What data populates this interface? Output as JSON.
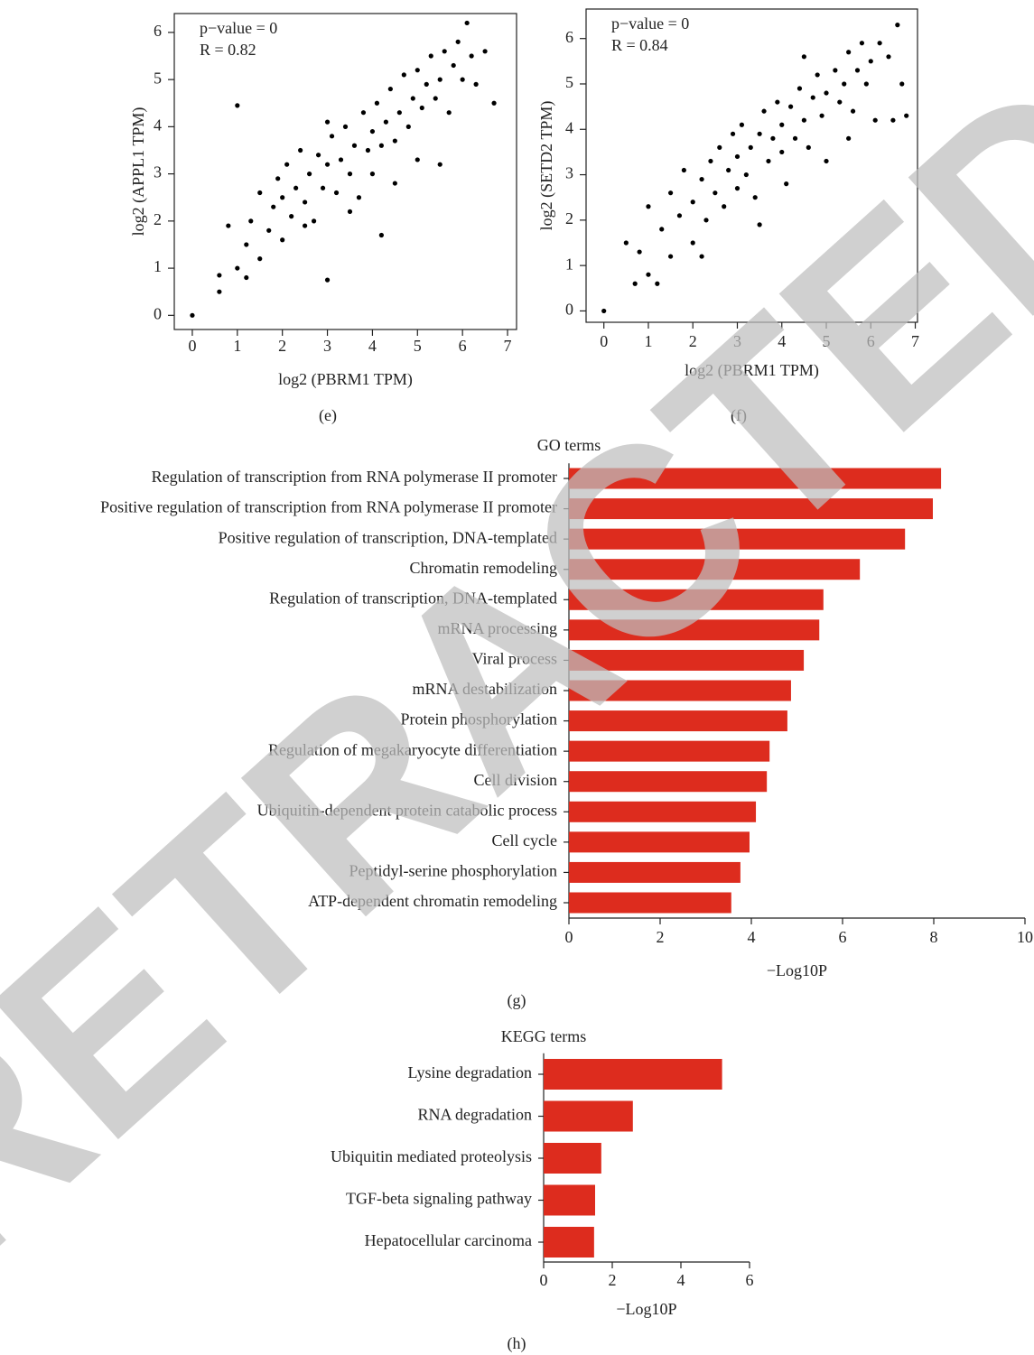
{
  "watermark": "RETRACTED",
  "chart_data": [
    {
      "type": "scatter",
      "panel": "(e)",
      "xlabel": "log2 (PBRM1 TPM)",
      "ylabel": "log2 (APPL1 TPM)",
      "annotations": [
        "p−value = 0",
        "R = 0.82"
      ],
      "color": "#000000",
      "xlim": [
        -0.4,
        7.2
      ],
      "ylim": [
        -0.3,
        6.4
      ],
      "xticks": [
        0,
        1,
        2,
        3,
        4,
        5,
        6,
        7
      ],
      "yticks": [
        0,
        1,
        2,
        3,
        4,
        5,
        6
      ],
      "x": [
        0,
        0.6,
        0.6,
        0.8,
        1,
        1,
        1.2,
        1.3,
        1.5,
        1.5,
        1.7,
        1.8,
        1.9,
        2,
        2,
        2.1,
        2.2,
        2.3,
        2.4,
        2.5,
        2.6,
        2.7,
        2.8,
        2.9,
        3,
        3,
        3.1,
        3.2,
        3.3,
        3.4,
        3.5,
        3.6,
        3.7,
        3.8,
        3.9,
        4,
        4,
        4.1,
        4.2,
        4.3,
        4.2,
        4.4,
        4.5,
        4.6,
        4.7,
        4.8,
        4.9,
        5,
        5,
        5.1,
        5.2,
        5.3,
        5.4,
        5.5,
        5.6,
        5.7,
        5.8,
        5.9,
        6,
        6.1,
        6.2,
        6.3,
        6.5,
        6.7,
        3.5,
        2.5,
        1.2,
        5.5,
        4.5,
        3.0
      ],
      "values": [
        0,
        0.5,
        0.85,
        1.9,
        1.0,
        4.45,
        1.5,
        2.0,
        1.2,
        2.6,
        1.8,
        2.3,
        2.9,
        1.6,
        2.5,
        3.2,
        2.1,
        2.7,
        3.5,
        2.4,
        3.0,
        2.0,
        3.4,
        2.7,
        3.2,
        0.75,
        3.8,
        2.6,
        3.3,
        4.0,
        3.0,
        3.6,
        2.5,
        4.3,
        3.5,
        3.9,
        3.0,
        4.5,
        3.6,
        4.1,
        1.7,
        4.8,
        3.7,
        4.3,
        5.1,
        4.0,
        4.6,
        3.3,
        5.2,
        4.4,
        4.9,
        5.5,
        4.6,
        5.0,
        5.6,
        4.3,
        5.3,
        5.8,
        5.0,
        6.2,
        5.5,
        4.9,
        5.6,
        4.5,
        2.2,
        1.9,
        0.8,
        3.2,
        2.8,
        4.1
      ]
    },
    {
      "type": "scatter",
      "panel": "(f)",
      "xlabel": "log2 (PBRM1 TPM)",
      "ylabel": "log2 (SETD2 TPM)",
      "annotations": [
        "p−value = 0",
        "R = 0.84"
      ],
      "color": "#000000",
      "xlim": [
        -0.4,
        7.05
      ],
      "ylim": [
        -0.25,
        6.65
      ],
      "xticks": [
        0,
        1,
        2,
        3,
        4,
        5,
        6,
        7
      ],
      "yticks": [
        0,
        1,
        2,
        3,
        4,
        5,
        6
      ],
      "x": [
        0,
        0.5,
        0.7,
        0.8,
        1,
        1,
        1.2,
        1.3,
        1.5,
        1.5,
        1.7,
        1.8,
        2,
        2,
        2.2,
        2.3,
        2.4,
        2.5,
        2.6,
        2.7,
        2.8,
        2.9,
        3,
        3,
        3.1,
        3.2,
        3.3,
        3.4,
        3.5,
        3.6,
        3.7,
        3.8,
        3.9,
        4,
        4,
        4.1,
        4.2,
        4.3,
        4.4,
        4.5,
        4.6,
        4.7,
        4.8,
        4.9,
        5,
        5,
        5.2,
        5.3,
        5.4,
        5.5,
        5.6,
        5.7,
        5.8,
        5.9,
        6,
        6.1,
        6.2,
        6.4,
        6.6,
        6.8,
        6.7,
        6.5,
        3.5,
        2.2,
        5.5,
        4.5
      ],
      "values": [
        0,
        1.5,
        0.6,
        1.3,
        0.8,
        2.3,
        0.6,
        1.8,
        2.6,
        1.2,
        2.1,
        3.1,
        2.4,
        1.5,
        2.9,
        2.0,
        3.3,
        2.6,
        3.6,
        2.3,
        3.1,
        3.9,
        2.7,
        3.4,
        4.1,
        3.0,
        3.6,
        2.5,
        3.9,
        4.4,
        3.3,
        3.8,
        4.6,
        3.5,
        4.1,
        2.8,
        4.5,
        3.8,
        4.9,
        4.2,
        3.6,
        4.7,
        5.2,
        4.3,
        4.8,
        3.3,
        5.3,
        4.6,
        5.0,
        5.7,
        4.4,
        5.3,
        5.9,
        5.0,
        5.5,
        4.2,
        5.9,
        5.6,
        6.3,
        4.3,
        5.0,
        4.2,
        1.9,
        1.2,
        3.8,
        5.6
      ]
    },
    {
      "type": "barh",
      "panel": "(g)",
      "title": "GO terms",
      "xlabel": "−Log10P",
      "color": "#dd2c1e",
      "xlim": [
        0,
        10
      ],
      "xticks": [
        0,
        2,
        4,
        6,
        8,
        10
      ],
      "categories": [
        "Regulation of transcription from RNA polymerase II promoter",
        "Positive regulation of transcription from RNA polymerase II promoter",
        "Positive regulation of transcription, DNA-templated",
        "Chromatin remodeling",
        "Regulation of transcription, DNA-templated",
        "mRNA processing",
        "Viral process",
        "mRNA destabilization",
        "Protein phosphorylation",
        "Regulation of megakaryocyte differentiation",
        "Cell division",
        "Ubiquitin-dependent protein catabolic process",
        "Cell cycle",
        "Peptidyl-serine phosphorylation",
        "ATP-dependent chromatin remodeling"
      ],
      "values": [
        8.16,
        7.98,
        7.37,
        6.38,
        5.58,
        5.49,
        5.15,
        4.87,
        4.79,
        4.4,
        4.34,
        4.1,
        3.96,
        3.76,
        3.56
      ]
    },
    {
      "type": "barh",
      "panel": "(h)",
      "title": "KEGG terms",
      "xlabel": "−Log10P",
      "color": "#dd2c1e",
      "xlim": [
        0,
        6
      ],
      "xticks": [
        0,
        2,
        4,
        6
      ],
      "categories": [
        "Lysine degradation",
        "RNA degradation",
        "Ubiquitin mediated proteolysis",
        "TGF-beta signaling pathway",
        "Hepatocellular carcinoma"
      ],
      "values": [
        5.2,
        2.6,
        1.68,
        1.5,
        1.47
      ]
    }
  ]
}
